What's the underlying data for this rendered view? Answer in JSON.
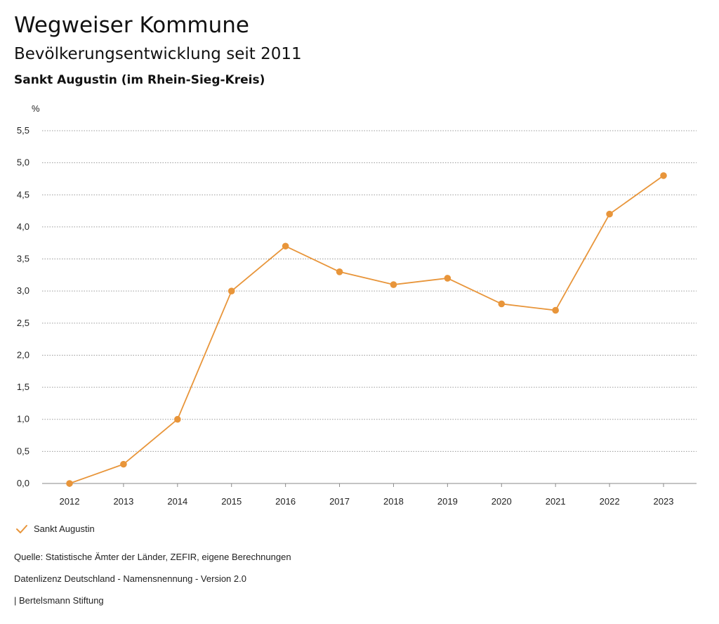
{
  "header": {
    "title": "Wegweiser Kommune",
    "subtitle": "Bevölkerungsentwicklung seit 2011",
    "region": "Sankt Augustin (im Rhein-Sieg-Kreis)"
  },
  "chart_data": {
    "type": "line",
    "title": "Bevölkerungsentwicklung seit 2011",
    "xlabel": "",
    "ylabel": "%",
    "categories": [
      "2012",
      "2013",
      "2014",
      "2015",
      "2016",
      "2017",
      "2018",
      "2019",
      "2020",
      "2021",
      "2022",
      "2023"
    ],
    "series": [
      {
        "name": "Sankt Augustin",
        "color": "#e8953a",
        "values": [
          0.0,
          0.3,
          1.0,
          3.0,
          3.7,
          3.3,
          3.1,
          3.2,
          2.8,
          2.7,
          4.2,
          4.8
        ]
      }
    ],
    "yticks": [
      0.0,
      0.5,
      1.0,
      1.5,
      2.0,
      2.5,
      3.0,
      3.5,
      4.0,
      4.5,
      5.0,
      5.5
    ],
    "ytick_labels": [
      "0,0",
      "0,5",
      "1,0",
      "1,5",
      "2,0",
      "2,5",
      "3,0",
      "3,5",
      "4,0",
      "4,5",
      "5,0",
      "5,5"
    ],
    "ylim": [
      0,
      5.5
    ],
    "grid": true,
    "legend": "bottom-left"
  },
  "legend": {
    "label": "Sankt Augustin",
    "icon": "check-icon",
    "color": "#e8953a"
  },
  "footer": {
    "source": "Quelle: Statistische Ämter der Länder, ZEFIR, eigene Berechnungen",
    "license": "Datenlizenz Deutschland - Namensnennung - Version 2.0",
    "publisher": "| Bertelsmann Stiftung"
  }
}
